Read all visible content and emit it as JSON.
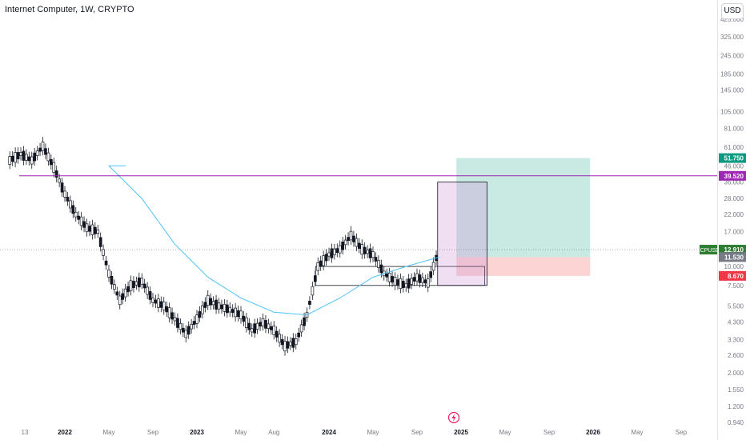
{
  "header": {
    "title": "Internet Computer, 1W, CRYPTO",
    "currency_button": "USD"
  },
  "colors": {
    "up": "#131722",
    "down": "#131722",
    "ma": "#4fc3f7",
    "resistance": "#9c27b0",
    "profit": "#26a69a",
    "loss": "#ef5350",
    "box": "#ce93d8",
    "symbol_badge": "#2e7d32"
  },
  "chart_data": {
    "type": "candlestick",
    "title": "Internet Computer, 1W, CRYPTO",
    "symbol": "ICPUSD",
    "y_scale": "log",
    "ylim": [
      0.94,
      425
    ],
    "y_ticks": [
      "425.000",
      "325.000",
      "245.000",
      "185.000",
      "145.000",
      "105.000",
      "81.000",
      "61.000",
      "46.000",
      "36.000",
      "28.000",
      "22.000",
      "17.000",
      "10.000",
      "7.500",
      "5.500",
      "4.300",
      "3.300",
      "2.600",
      "2.000",
      "1.550",
      "1.200",
      "0.940"
    ],
    "x_ticks": [
      "13",
      "2022",
      "May",
      "Sep",
      "2023",
      "May",
      "Aug",
      "2024",
      "May",
      "Sep",
      "2025",
      "May",
      "Sep",
      "2026",
      "May",
      "Sep"
    ],
    "series_close_approx": [
      {
        "date": "2021-12",
        "close": 45
      },
      {
        "date": "2022-01",
        "close": 30
      },
      {
        "date": "2022-02",
        "close": 22
      },
      {
        "date": "2022-03",
        "close": 18
      },
      {
        "date": "2022-04",
        "close": 17
      },
      {
        "date": "2022-05",
        "close": 9
      },
      {
        "date": "2022-06",
        "close": 6
      },
      {
        "date": "2022-07",
        "close": 7.5
      },
      {
        "date": "2022-08",
        "close": 8
      },
      {
        "date": "2022-09",
        "close": 6
      },
      {
        "date": "2022-10",
        "close": 5.5
      },
      {
        "date": "2022-11",
        "close": 4.5
      },
      {
        "date": "2022-12",
        "close": 3.6
      },
      {
        "date": "2023-01",
        "close": 4.5
      },
      {
        "date": "2023-02",
        "close": 6
      },
      {
        "date": "2023-03",
        "close": 5.5
      },
      {
        "date": "2023-04",
        "close": 5.2
      },
      {
        "date": "2023-05",
        "close": 4.8
      },
      {
        "date": "2023-06",
        "close": 3.8
      },
      {
        "date": "2023-07",
        "close": 4.3
      },
      {
        "date": "2023-08",
        "close": 3.8
      },
      {
        "date": "2023-09",
        "close": 3
      },
      {
        "date": "2023-10",
        "close": 3.2
      },
      {
        "date": "2023-11",
        "close": 4.8
      },
      {
        "date": "2023-12",
        "close": 10
      },
      {
        "date": "2024-01",
        "close": 12
      },
      {
        "date": "2024-02",
        "close": 13
      },
      {
        "date": "2024-03",
        "close": 16
      },
      {
        "date": "2024-04",
        "close": 13
      },
      {
        "date": "2024-05",
        "close": 12
      },
      {
        "date": "2024-06",
        "close": 9
      },
      {
        "date": "2024-07",
        "close": 8
      },
      {
        "date": "2024-08",
        "close": 7.5
      },
      {
        "date": "2024-09",
        "close": 8.5
      },
      {
        "date": "2024-10",
        "close": 7.8
      },
      {
        "date": "2024-11",
        "close": 12.91
      }
    ],
    "moving_average_approx": [
      {
        "date": "2022-05",
        "value": 46
      },
      {
        "date": "2022-08",
        "value": 28
      },
      {
        "date": "2022-11",
        "value": 14
      },
      {
        "date": "2023-02",
        "value": 8.5
      },
      {
        "date": "2023-05",
        "value": 6.2
      },
      {
        "date": "2023-08",
        "value": 5
      },
      {
        "date": "2023-11",
        "value": 4.8
      },
      {
        "date": "2024-02",
        "value": 6.2
      },
      {
        "date": "2024-05",
        "value": 8.5
      },
      {
        "date": "2024-08",
        "value": 10
      },
      {
        "date": "2024-11",
        "value": 11.53
      }
    ],
    "horizontal_line": {
      "value": 39.52
    },
    "position": {
      "target": 51.75,
      "entry": 11.53,
      "stop": 8.67
    },
    "rectangle": {
      "top": 36,
      "bottom": 7.5,
      "from": "2024-10",
      "to": "2025-03"
    },
    "range_box": {
      "top": 10,
      "bottom": 7.5,
      "from": "2023-12",
      "to": "2025-03"
    },
    "price_labels": [
      {
        "value": "51.750",
        "color": "#089981"
      },
      {
        "value": "39.520",
        "color": "#9c27b0"
      },
      {
        "value": "12.910",
        "color": "#2e7d32",
        "symbol": "ICPUSD"
      },
      {
        "value": "11.530",
        "color": "#787b86"
      },
      {
        "value": "8.670",
        "color": "#f23645"
      }
    ]
  }
}
